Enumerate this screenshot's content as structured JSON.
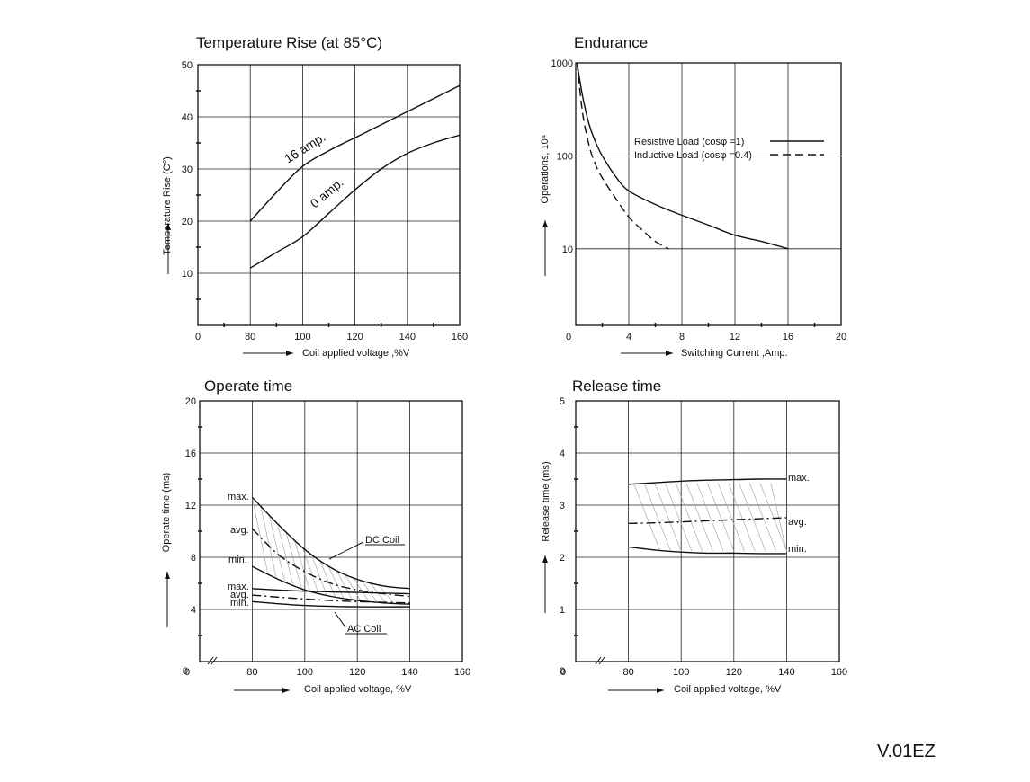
{
  "document": {
    "code": "V.01EZ"
  },
  "chart_data": [
    {
      "id": "temp",
      "type": "line",
      "title": "Temperature Rise (at 85°C)",
      "xlabel": "Coil applied voltage ,%V",
      "ylabel": "Temperature Rise (C°)",
      "xlim": [
        0,
        160
      ],
      "ylim": [
        0,
        50
      ],
      "xticks": [
        "0",
        "80",
        "100",
        "120",
        "140",
        "160"
      ],
      "yticks": [
        "10",
        "20",
        "30",
        "40",
        "50"
      ],
      "grid": true,
      "series": [
        {
          "name": "16 amp.",
          "label": "16 amp.",
          "style": "solid",
          "x": [
            80,
            90,
            100,
            110,
            120,
            130,
            140,
            150,
            160
          ],
          "y": [
            20,
            25.5,
            30.5,
            33.5,
            36,
            38.5,
            41,
            43.5,
            46
          ]
        },
        {
          "name": "0 amp.",
          "label": "0 amp.",
          "style": "solid",
          "x": [
            80,
            90,
            100,
            110,
            120,
            130,
            140,
            150,
            160
          ],
          "y": [
            11,
            14,
            17,
            21.5,
            26,
            30,
            33,
            35,
            36.5
          ]
        }
      ]
    },
    {
      "id": "endurance",
      "type": "line",
      "title": "Endurance",
      "xlabel": "Switching Current ,Amp.",
      "ylabel": "Operations, 10⁴",
      "xscale": "linear",
      "yscale": "log",
      "xlim": [
        0,
        20
      ],
      "ylim": [
        1.5,
        1000
      ],
      "xticks": [
        "0",
        "4",
        "8",
        "12",
        "16",
        "20"
      ],
      "yticks": [
        "10",
        "100",
        "1000"
      ],
      "grid": true,
      "legend": "top-right",
      "series": [
        {
          "name": "Resistive Load (cosφ =1)",
          "style": "solid",
          "x": [
            0.1,
            0.5,
            1,
            1.5,
            2,
            3,
            4,
            6,
            8,
            10,
            12,
            14,
            16
          ],
          "y": [
            1000,
            450,
            220,
            140,
            100,
            60,
            42,
            30,
            23,
            18,
            14,
            12,
            10
          ]
        },
        {
          "name": "Inductive Load (cosφ =0.4)",
          "style": "dashed",
          "x": [
            0.1,
            0.5,
            1,
            1.5,
            2,
            3,
            4,
            5,
            6,
            7
          ],
          "y": [
            1000,
            300,
            130,
            80,
            58,
            35,
            22,
            16,
            12,
            10
          ]
        }
      ]
    },
    {
      "id": "operate",
      "type": "line",
      "title": "Operate time",
      "xlabel": "Coil applied voltage, %V",
      "ylabel": "Operate time (ms)",
      "xlim": [
        60,
        160
      ],
      "ylim": [
        0,
        20
      ],
      "xticks": [
        "0",
        "80",
        "100",
        "120",
        "140",
        "160"
      ],
      "yticks": [
        "4",
        "8",
        "12",
        "16",
        "20"
      ],
      "grid": true,
      "annotations": [
        "DC Coil",
        "AC Coil"
      ],
      "series": [
        {
          "name": "DC max.",
          "label": "max.",
          "style": "solid",
          "x": [
            80,
            90,
            100,
            110,
            120,
            130,
            140
          ],
          "y": [
            12.6,
            10.5,
            8.6,
            7.2,
            6.3,
            5.8,
            5.6
          ]
        },
        {
          "name": "DC avg.",
          "label": "avg.",
          "style": "dashdot",
          "x": [
            80,
            90,
            100,
            110,
            120,
            130,
            140
          ],
          "y": [
            10.2,
            8.2,
            6.9,
            6.0,
            5.5,
            5.2,
            5.0
          ]
        },
        {
          "name": "DC min.",
          "label": "min.",
          "style": "solid",
          "x": [
            80,
            90,
            100,
            110,
            120,
            130,
            140
          ],
          "y": [
            7.3,
            6.3,
            5.5,
            5.0,
            4.7,
            4.5,
            4.4
          ]
        },
        {
          "name": "AC max.",
          "label": "max.",
          "style": "solid",
          "x": [
            80,
            100,
            120,
            140
          ],
          "y": [
            5.6,
            5.4,
            5.3,
            5.2
          ]
        },
        {
          "name": "AC avg.",
          "label": "avg.",
          "style": "dashdot",
          "x": [
            80,
            100,
            120,
            140
          ],
          "y": [
            5.1,
            4.8,
            4.6,
            4.5
          ]
        },
        {
          "name": "AC min.",
          "label": "min.",
          "style": "solid",
          "x": [
            80,
            100,
            120,
            140
          ],
          "y": [
            4.6,
            4.3,
            4.2,
            4.2
          ]
        }
      ]
    },
    {
      "id": "release",
      "type": "line",
      "title": "Release time",
      "xlabel": "Coil applied voltage, %V",
      "ylabel": "Release time (ms)",
      "xlim": [
        60,
        160
      ],
      "ylim": [
        0,
        5
      ],
      "xticks": [
        "0",
        "80",
        "100",
        "120",
        "140",
        "160"
      ],
      "yticks": [
        "1",
        "2",
        "3",
        "4",
        "5"
      ],
      "grid": true,
      "series": [
        {
          "name": "max.",
          "label": "max.",
          "style": "solid",
          "x": [
            80,
            90,
            100,
            110,
            120,
            130,
            140
          ],
          "y": [
            3.4,
            3.43,
            3.46,
            3.48,
            3.49,
            3.5,
            3.5
          ]
        },
        {
          "name": "avg.",
          "label": "avg.",
          "style": "dashdot",
          "x": [
            80,
            90,
            100,
            110,
            120,
            130,
            140
          ],
          "y": [
            2.65,
            2.66,
            2.68,
            2.7,
            2.72,
            2.74,
            2.76
          ]
        },
        {
          "name": "min.",
          "label": "min.",
          "style": "solid",
          "x": [
            80,
            90,
            100,
            110,
            120,
            130,
            140
          ],
          "y": [
            2.2,
            2.14,
            2.1,
            2.08,
            2.08,
            2.07,
            2.07
          ]
        }
      ]
    }
  ]
}
